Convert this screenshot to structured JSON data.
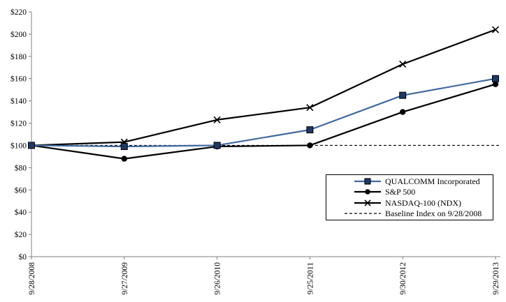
{
  "chart_data": {
    "type": "line",
    "title": "",
    "xlabel": "",
    "ylabel": "",
    "x_categories": [
      "9/28/2008",
      "9/27/2009",
      "9/26/2010",
      "9/25/2011",
      "9/30/2012",
      "9/29/2013"
    ],
    "ylim": [
      0,
      220
    ],
    "y_ticks": [
      0,
      20,
      40,
      60,
      80,
      100,
      120,
      140,
      160,
      180,
      200,
      220
    ],
    "y_tick_labels": [
      "$0",
      "$20",
      "$40",
      "$60",
      "$80",
      "$100",
      "$120",
      "$140",
      "$160",
      "$180",
      "$200",
      "$220"
    ],
    "grid": false,
    "legend_position": "inside-right-below-center",
    "axis_color": "#808080",
    "baseline_value": 100,
    "series": [
      {
        "name": "QUALCOMM Incorporated",
        "values": [
          100,
          99,
          100,
          114,
          145,
          160
        ],
        "color": "#41699F",
        "marker": "square",
        "marker_color": "#1F3864",
        "dashed": false
      },
      {
        "name": "S&P 500",
        "values": [
          100,
          88,
          99,
          100,
          130,
          155
        ],
        "color": "#000000",
        "marker": "circle",
        "marker_color": "#000000",
        "dashed": false
      },
      {
        "name": "NASDAQ-100 (NDX)",
        "values": [
          100,
          103,
          123,
          134,
          173,
          204
        ],
        "color": "#000000",
        "marker": "x",
        "marker_color": "#000000",
        "dashed": false
      },
      {
        "name": "Baseline Index on 9/28/2008",
        "values": [
          100,
          100,
          100,
          100,
          100,
          100
        ],
        "color": "#000000",
        "marker": "none",
        "marker_color": "#000000",
        "dashed": true
      }
    ]
  }
}
